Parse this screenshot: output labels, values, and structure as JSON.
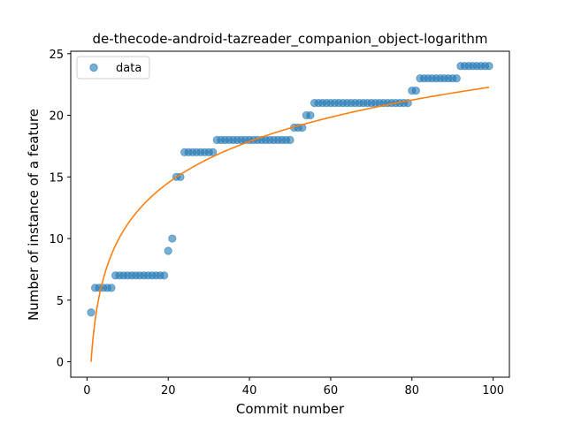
{
  "chart_data": {
    "type": "scatter",
    "title": "de-thecode-android-tazreader_companion_object-logarithm",
    "xlabel": "Commit number",
    "ylabel": "Number of instance of a feature",
    "xlim": [
      -4,
      104
    ],
    "ylim": [
      -1.25,
      25.2
    ],
    "xticks": [
      0,
      20,
      40,
      60,
      80,
      100
    ],
    "yticks": [
      0,
      5,
      10,
      15,
      20,
      25
    ],
    "grid": false,
    "legend": {
      "placement": "top-left",
      "entries": [
        "data"
      ]
    },
    "colors": {
      "scatter": "#1f77b4",
      "fit": "#ff7f0e"
    },
    "series": [
      {
        "name": "data",
        "kind": "scatter",
        "x": [
          1,
          2,
          3,
          4,
          5,
          6,
          7,
          8,
          9,
          10,
          11,
          12,
          13,
          14,
          15,
          16,
          17,
          18,
          19,
          20,
          21,
          22,
          23,
          24,
          25,
          26,
          27,
          28,
          29,
          30,
          31,
          32,
          33,
          34,
          35,
          36,
          37,
          38,
          39,
          40,
          41,
          42,
          43,
          44,
          45,
          46,
          47,
          48,
          49,
          50,
          51,
          52,
          53,
          54,
          55,
          56,
          57,
          58,
          59,
          60,
          61,
          62,
          63,
          64,
          65,
          66,
          67,
          68,
          69,
          70,
          71,
          72,
          73,
          74,
          75,
          76,
          77,
          78,
          79,
          80,
          81,
          82,
          83,
          84,
          85,
          86,
          87,
          88,
          89,
          90,
          91,
          92,
          93,
          94,
          95,
          96,
          97,
          98,
          99
        ],
        "y": [
          4,
          6,
          6,
          6,
          6,
          6,
          7,
          7,
          7,
          7,
          7,
          7,
          7,
          7,
          7,
          7,
          7,
          7,
          7,
          9,
          10,
          15,
          15,
          17,
          17,
          17,
          17,
          17,
          17,
          17,
          17,
          18,
          18,
          18,
          18,
          18,
          18,
          18,
          18,
          18,
          18,
          18,
          18,
          18,
          18,
          18,
          18,
          18,
          18,
          18,
          19,
          19,
          19,
          20,
          20,
          21,
          21,
          21,
          21,
          21,
          21,
          21,
          21,
          21,
          21,
          21,
          21,
          21,
          21,
          21,
          21,
          21,
          21,
          21,
          21,
          21,
          21,
          21,
          21,
          22,
          22,
          23,
          23,
          23,
          23,
          23,
          23,
          23,
          23,
          23,
          23,
          24,
          24,
          24,
          24,
          24,
          24,
          24,
          24
        ]
      },
      {
        "name": "",
        "kind": "line",
        "fit": {
          "a": 4.847,
          "b": 0.0,
          "x_start": 1,
          "x_end": 99
        }
      }
    ]
  }
}
